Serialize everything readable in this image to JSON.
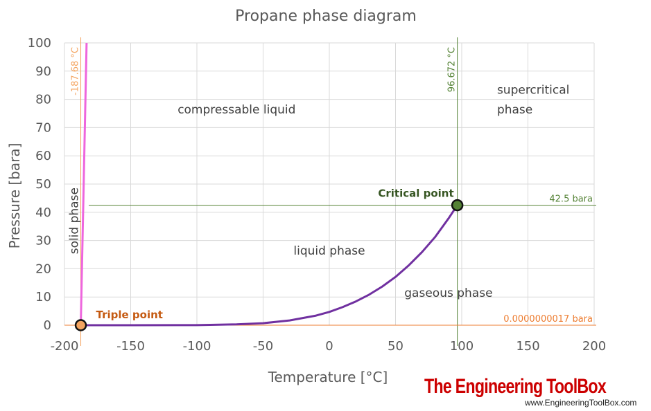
{
  "chart_data": {
    "type": "line",
    "title": "Propane phase diagram",
    "xlabel": "Temperature [°C]",
    "ylabel": "Pressure [bara]",
    "xlim": [
      -200,
      200
    ],
    "ylim": [
      0,
      100
    ],
    "x_ticks": [
      -200,
      -150,
      -100,
      -50,
      0,
      50,
      100,
      150,
      200
    ],
    "x_tick_labels": [
      "-200",
      "-150",
      "-100",
      "-50",
      "0",
      "50",
      "100",
      "150",
      "200"
    ],
    "y_ticks": [
      0,
      10,
      20,
      30,
      40,
      50,
      60,
      70,
      80,
      90,
      100
    ],
    "y_tick_labels": [
      "0",
      "10",
      "20",
      "30",
      "40",
      "50",
      "60",
      "70",
      "80",
      "90",
      "100"
    ],
    "grid": true,
    "series": [
      {
        "color": "#7030a0",
        "x": [
          -187.68,
          -150,
          -100,
          -70,
          -50,
          -30,
          -10,
          0,
          10,
          20,
          30,
          40,
          50,
          60,
          70,
          80,
          90,
          96.672
        ],
        "y": [
          0,
          0.01,
          0.03,
          0.3,
          0.7,
          1.7,
          3.4,
          4.7,
          6.4,
          8.4,
          10.8,
          13.7,
          17.1,
          21.2,
          25.9,
          31.3,
          37.8,
          42.5
        ]
      },
      {
        "color": "#ee66dd",
        "x": [
          -187.68,
          -183.3
        ],
        "y": [
          0,
          100
        ]
      }
    ],
    "reference_lines": [
      {
        "orientation": "vertical",
        "value": -187.68,
        "label": "-187.68 °C",
        "color": "#f4a460"
      },
      {
        "orientation": "vertical",
        "value": 96.672,
        "label": "96.672 °C",
        "color": "#548235"
      },
      {
        "orientation": "horizontal",
        "value": 42.5,
        "label": "42.5 bara",
        "color": "#548235"
      },
      {
        "orientation": "horizontal",
        "value": 0,
        "label": "0.0000000017 bara",
        "color": "#ed7d31"
      }
    ],
    "points": [
      {
        "label": "Triple point",
        "x": -187.68,
        "y": 0,
        "color": "#f4a460",
        "label_color": "#c55a11"
      },
      {
        "label": "Critical point",
        "x": 96.672,
        "y": 42.5,
        "color": "#548235",
        "label_color": "#375623"
      }
    ],
    "annotations": [
      {
        "text": "compressable liquid",
        "x": -70,
        "y": 75
      },
      {
        "text": "liquid phase",
        "x": 0,
        "y": 25
      },
      {
        "text": "gaseous phase",
        "x": 90,
        "y": 10
      },
      {
        "text": "supercritical",
        "x": 145,
        "y": 82
      },
      {
        "text": "phase",
        "x": 145,
        "y": 75
      },
      {
        "text": "solid phase",
        "x": -193,
        "y": 35
      }
    ]
  },
  "watermark": {
    "name": "The Engineering ToolBox",
    "url": "www.EngineeringToolBox.com"
  }
}
